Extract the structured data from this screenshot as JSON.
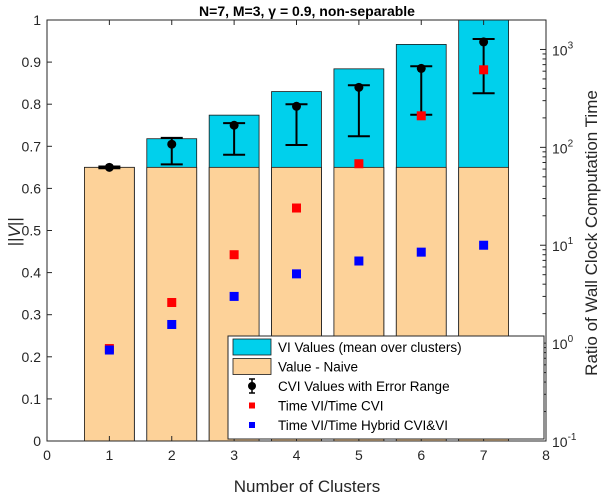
{
  "chart_data": {
    "type": "bar",
    "title": "N=7, M=3, γ = 0.9, non-separable",
    "xlabel": "Number of Clusters",
    "ylabel": "||V||",
    "y2label": "Ratio of Wall Clock Computation Time",
    "xlim": [
      0,
      8
    ],
    "ylim": [
      0,
      1
    ],
    "y2lim": [
      0.1,
      2000
    ],
    "y2scale": "log",
    "xticks": [
      0,
      1,
      2,
      3,
      4,
      5,
      6,
      7,
      8
    ],
    "yticks": [
      0,
      0.1,
      0.2,
      0.3,
      0.4,
      0.5,
      0.6,
      0.7,
      0.8,
      0.9,
      1
    ],
    "y2ticks": [
      {
        "value": 0.1,
        "base": "10",
        "exp": "-1"
      },
      {
        "value": 1,
        "base": "10",
        "exp": "0"
      },
      {
        "value": 10,
        "base": "10",
        "exp": "1"
      },
      {
        "value": 100,
        "base": "10",
        "exp": "2"
      },
      {
        "value": 1000,
        "base": "10",
        "exp": "3"
      }
    ],
    "x": [
      1,
      2,
      3,
      4,
      5,
      6,
      7
    ],
    "series": [
      {
        "name": "VI Values (mean over clusters)",
        "kind": "bar",
        "axis": "left",
        "color": "#00d0ec",
        "values": [
          0.65,
          0.718,
          0.774,
          0.83,
          0.884,
          0.942,
          1.0
        ]
      },
      {
        "name": "Value - Naive",
        "kind": "bar",
        "axis": "left",
        "color": "#fdd299",
        "values": [
          0.65,
          0.65,
          0.65,
          0.65,
          0.65,
          0.65,
          0.65
        ]
      },
      {
        "name": "CVI Values with Error Range",
        "kind": "errorbar",
        "axis": "left",
        "color": "#000000",
        "values": [
          0.65,
          0.705,
          0.75,
          0.795,
          0.84,
          0.885,
          0.948
        ],
        "lower": [
          0.648,
          0.657,
          0.68,
          0.703,
          0.724,
          0.775,
          0.826
        ],
        "upper": [
          0.652,
          0.72,
          0.755,
          0.8,
          0.845,
          0.89,
          0.955
        ]
      },
      {
        "name": "Time VI/Time CVI",
        "kind": "scatter",
        "axis": "right",
        "color": "#ff0000",
        "values": [
          0.88,
          2.6,
          8.0,
          24.0,
          68.0,
          210.0,
          620.0
        ]
      },
      {
        "name": "Time VI/Time Hybrid CVI&VI",
        "kind": "scatter",
        "axis": "right",
        "color": "#0000ff",
        "values": [
          0.85,
          1.55,
          3.0,
          5.1,
          6.9,
          8.5,
          10.0
        ]
      }
    ],
    "legend_position": "bottom-right",
    "grid": false
  }
}
